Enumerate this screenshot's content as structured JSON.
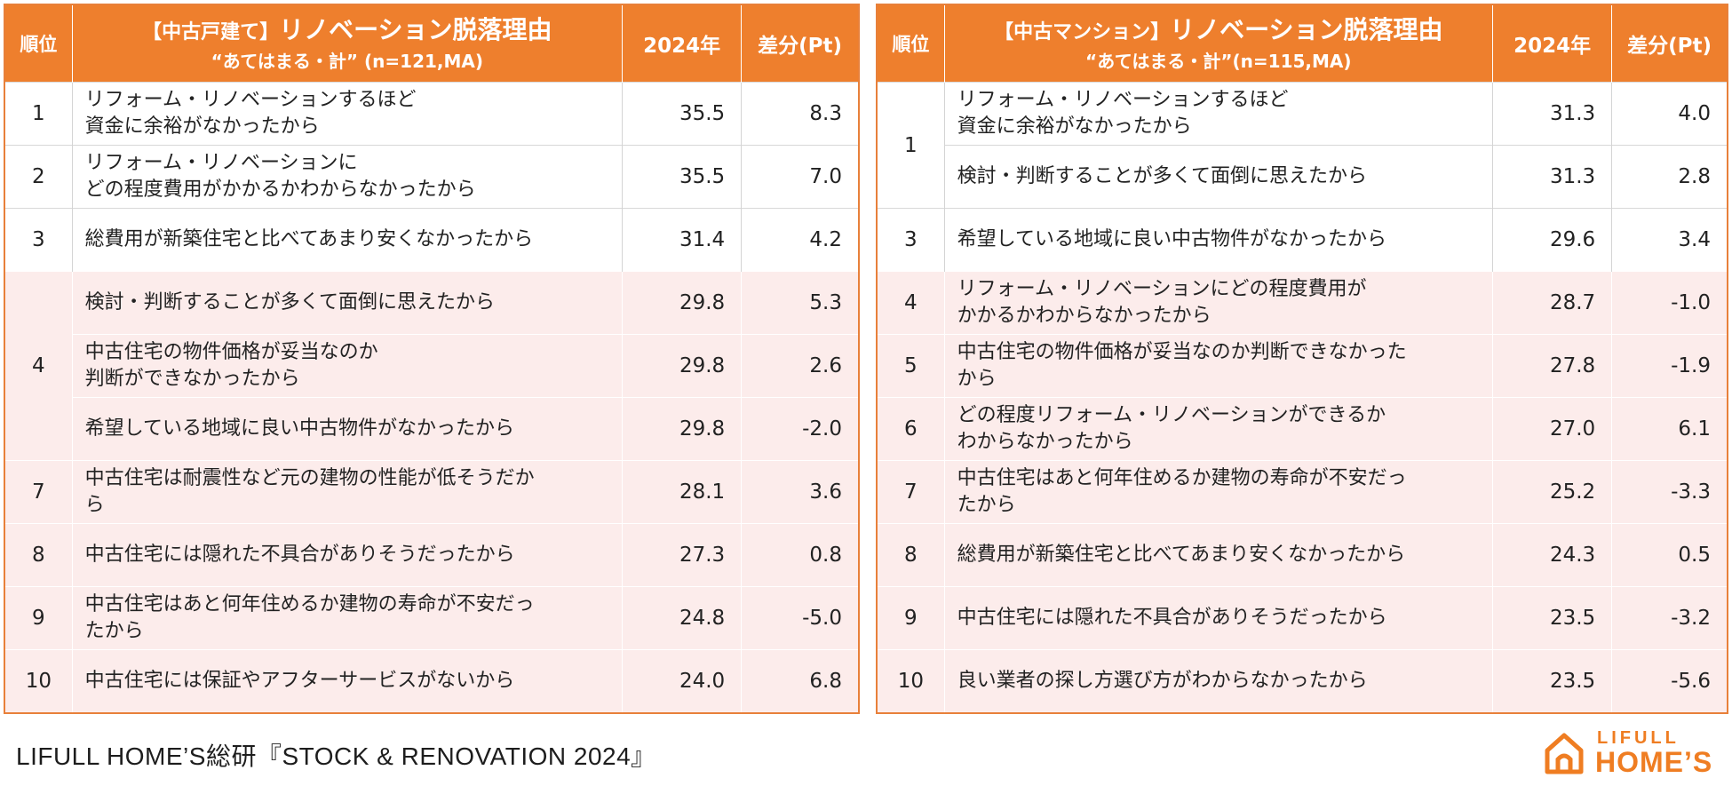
{
  "left_table": {
    "header": {
      "rank": "順位",
      "title_bracket": "【中古戸建て】",
      "title_main": "リノベーション脱落理由",
      "title_sub": "“あてはまる・計” (n=121,MA)",
      "year": "2024年",
      "diff": "差分(Pt)"
    },
    "rows": [
      {
        "rank": "1",
        "reason": "リフォーム・リノベーションするほど\n資金に余裕がなかったから",
        "value": "35.5",
        "diff": "8.3"
      },
      {
        "rank": "2",
        "reason": "リフォーム・リノベーションに\nどの程度費用がかかるかわからなかったから",
        "value": "35.5",
        "diff": "7.0"
      },
      {
        "rank": "3",
        "reason": "総費用が新築住宅と比べてあまり安くなかったから",
        "value": "31.4",
        "diff": "4.2"
      },
      {
        "rank": "4",
        "reason": "検討・判断することが多くて面倒に思えたから",
        "value": "29.8",
        "diff": "5.3"
      },
      {
        "rank": "",
        "reason": "中古住宅の物件価格が妥当なのか\n判断ができなかったから",
        "value": "29.8",
        "diff": "2.6"
      },
      {
        "rank": "",
        "reason": "希望している地域に良い中古物件がなかったから",
        "value": "29.8",
        "diff": "-2.0"
      },
      {
        "rank": "7",
        "reason": "中古住宅は耐震性など元の建物の性能が低そうだか\nら",
        "value": "28.1",
        "diff": "3.6"
      },
      {
        "rank": "8",
        "reason": "中古住宅には隠れた不具合がありそうだったから",
        "value": "27.3",
        "diff": "0.8"
      },
      {
        "rank": "9",
        "reason": "中古住宅はあと何年住めるか建物の寿命が不安だっ\nたから",
        "value": "24.8",
        "diff": "-5.0"
      },
      {
        "rank": "10",
        "reason": "中古住宅には保証やアフターサービスがないから",
        "value": "24.0",
        "diff": "6.8"
      }
    ]
  },
  "right_table": {
    "header": {
      "rank": "順位",
      "title_bracket": "【中古マンション】",
      "title_main": "リノベーション脱落理由",
      "title_sub": "“あてはまる・計”(n=115,MA)",
      "year": "2024年",
      "diff": "差分(Pt)"
    },
    "rows": [
      {
        "rank": "1",
        "reason": "リフォーム・リノベーションするほど\n資金に余裕がなかったから",
        "value": "31.3",
        "diff": "4.0"
      },
      {
        "rank": "",
        "reason": "検討・判断することが多くて面倒に思えたから",
        "value": "31.3",
        "diff": "2.8"
      },
      {
        "rank": "3",
        "reason": "希望している地域に良い中古物件がなかったから",
        "value": "29.6",
        "diff": "3.4"
      },
      {
        "rank": "4",
        "reason": "リフォーム・リノベーションにどの程度費用が\nかかるかわからなかったから",
        "value": "28.7",
        "diff": "-1.0"
      },
      {
        "rank": "5",
        "reason": "中古住宅の物件価格が妥当なのか判断できなかった\nから",
        "value": "27.8",
        "diff": "-1.9"
      },
      {
        "rank": "6",
        "reason": "どの程度リフォーム・リノベーションができるか\nわからなかったから",
        "value": "27.0",
        "diff": "6.1"
      },
      {
        "rank": "7",
        "reason": "中古住宅はあと何年住めるか建物の寿命が不安だっ\nたから",
        "value": "25.2",
        "diff": "-3.3"
      },
      {
        "rank": "8",
        "reason": "総費用が新築住宅と比べてあまり安くなかったから",
        "value": "24.3",
        "diff": "0.5"
      },
      {
        "rank": "9",
        "reason": "中古住宅には隠れた不具合がありそうだったから",
        "value": "23.5",
        "diff": "-3.2"
      },
      {
        "rank": "10",
        "reason": "良い業者の探し方選び方がわからなかったから",
        "value": "23.5",
        "diff": "-5.6"
      }
    ]
  },
  "footer": {
    "source": "LIFULL HOME’S総研『STOCK & RENOVATION 2024』",
    "logo_top": "LIFULL",
    "logo_bottom": "HOME’S"
  },
  "colors": {
    "header_orange": "#ee7f2d",
    "highlight_pink": "#fceceb",
    "logo_orange": "#ef7d22"
  }
}
